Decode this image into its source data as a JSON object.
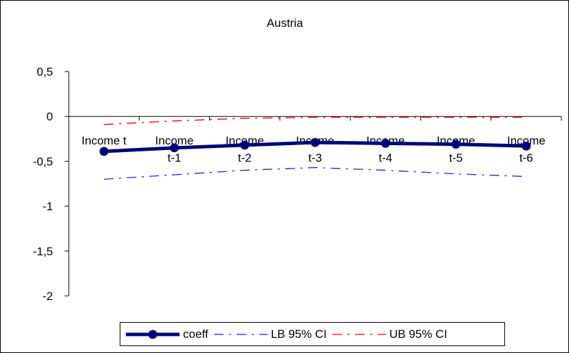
{
  "chart_data": {
    "type": "line",
    "title": "Austria",
    "categories": [
      "Income t",
      "Income t-1",
      "Income t-2",
      "Income t-3",
      "Income t-4",
      "Income t-5",
      "Income t-6"
    ],
    "category_lines": [
      [
        "Income t"
      ],
      [
        "Income",
        "t-1"
      ],
      [
        "Income",
        "t-2"
      ],
      [
        "Income",
        "t-3"
      ],
      [
        "Income",
        "t-4"
      ],
      [
        "Income",
        "t-5"
      ],
      [
        "Income",
        "t-6"
      ]
    ],
    "ylim": [
      -2,
      0.5
    ],
    "yticks": [
      0.5,
      0,
      -0.5,
      -1,
      -1.5,
      -2
    ],
    "ytick_labels": [
      "0,5",
      "0",
      "-0,5",
      "-1",
      "-1,5",
      "-2"
    ],
    "grid": false,
    "legend_position": "bottom",
    "series": [
      {
        "name": "coeff",
        "values": [
          -0.39,
          -0.35,
          -0.32,
          -0.29,
          -0.3,
          -0.31,
          -0.33
        ],
        "color": "#000080",
        "style": "solid-markers"
      },
      {
        "name": "LB 95% CI",
        "values": [
          -0.7,
          -0.65,
          -0.6,
          -0.57,
          -0.6,
          -0.64,
          -0.67
        ],
        "color": "#1f1fd0",
        "style": "dash-dot"
      },
      {
        "name": "UB 95% CI",
        "values": [
          -0.09,
          -0.05,
          -0.02,
          -0.01,
          -0.01,
          -0.01,
          -0.01
        ],
        "color": "#e00000",
        "style": "dash-dot"
      }
    ]
  }
}
